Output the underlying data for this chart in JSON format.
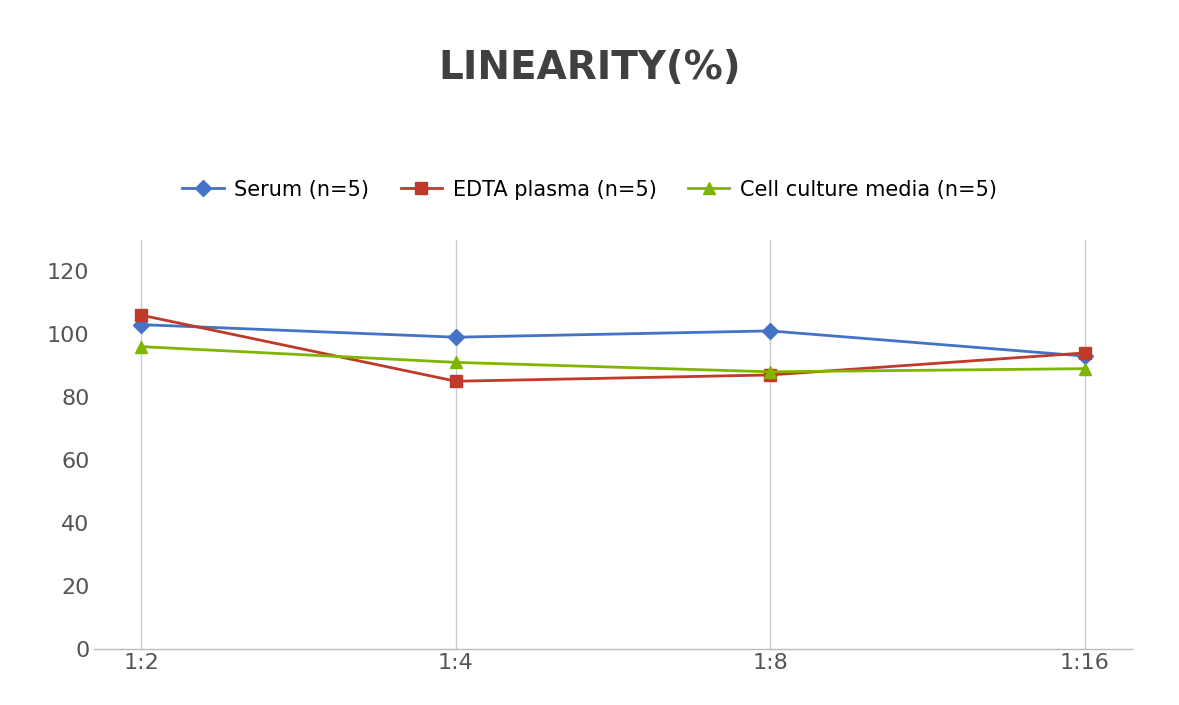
{
  "title": "LINEARITY(%)",
  "x_labels": [
    "1:2",
    "1:4",
    "1:8",
    "1:16"
  ],
  "series": [
    {
      "label": "Serum (n=5)",
      "values": [
        103,
        99,
        101,
        93
      ],
      "color": "#4472C4",
      "marker": "D",
      "markersize": 8
    },
    {
      "label": "EDTA plasma (n=5)",
      "values": [
        106,
        85,
        87,
        94
      ],
      "color": "#C0392B",
      "marker": "s",
      "markersize": 8
    },
    {
      "label": "Cell culture media (n=5)",
      "values": [
        96,
        91,
        88,
        89
      ],
      "color": "#7FB500",
      "marker": "^",
      "markersize": 8
    }
  ],
  "ylim": [
    0,
    130
  ],
  "yticks": [
    0,
    20,
    40,
    60,
    80,
    100,
    120
  ],
  "title_fontsize": 28,
  "legend_fontsize": 15,
  "tick_fontsize": 16,
  "background_color": "#FFFFFF",
  "grid_color": "#CCCCCC",
  "linewidth": 2.0,
  "title_color": "#404040"
}
